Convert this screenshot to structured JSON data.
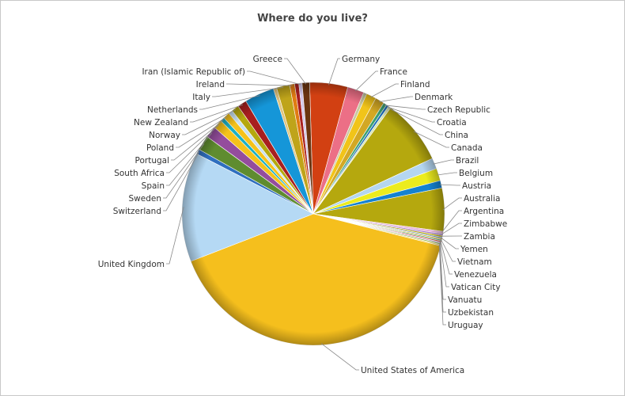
{
  "chart_data": {
    "type": "pie",
    "title": "Where do you live?",
    "slices": [
      {
        "label": "Germany",
        "value": 4.6,
        "color": "#d24012"
      },
      {
        "label": "France",
        "value": 2.0,
        "color": "#ec6f86"
      },
      {
        "label": "Finland",
        "value": 0.4,
        "color": "#c8c8a0"
      },
      {
        "label": "Finland",
        "value": 1.2,
        "color": "#f1c419"
      },
      {
        "label": "Denmark",
        "value": 1.1,
        "color": "#d3a824"
      },
      {
        "label": "Czech Republic",
        "value": 0.4,
        "color": "#3b9f6e"
      },
      {
        "label": "Croatia",
        "value": 0.3,
        "color": "#1f6fb8"
      },
      {
        "label": "China",
        "value": 0.3,
        "color": "#d8e4b0"
      },
      {
        "label": "Canada",
        "value": 7.9,
        "color": "#b5a80e"
      },
      {
        "label": "Brazil",
        "value": 1.3,
        "color": "#b4d6f0"
      },
      {
        "label": "Belgium",
        "value": 1.5,
        "color": "#ecec1e"
      },
      {
        "label": "Austria",
        "value": 0.9,
        "color": "#1582d0"
      },
      {
        "label": "Australia",
        "value": 5.2,
        "color": "#b5a80e"
      },
      {
        "label": "Argentina",
        "value": 0.3,
        "color": "#e6b4d8"
      },
      {
        "label": "Zimbabwe",
        "value": 0.2,
        "color": "#a878c8"
      },
      {
        "label": "Zambia",
        "value": 0.2,
        "color": "#b5a80e"
      },
      {
        "label": "Yemen",
        "value": 0.15,
        "color": "#5b8fc8"
      },
      {
        "label": "Vietnam",
        "value": 0.15,
        "color": "#e8b428"
      },
      {
        "label": "Venezuela",
        "value": 0.15,
        "color": "#4cae7c"
      },
      {
        "label": "Vatican City",
        "value": 0.15,
        "color": "#d45a3a"
      },
      {
        "label": "Vanuatu",
        "value": 0.15,
        "color": "#c8a0d0"
      },
      {
        "label": "Uzbekistan",
        "value": 0.15,
        "color": "#8ab850"
      },
      {
        "label": "Uruguay",
        "value": 0.15,
        "color": "#f0d060"
      },
      {
        "label": "United States of America",
        "value": 39.5,
        "color": "#f5bf1d"
      },
      {
        "label": "United Kingdom",
        "value": 13.2,
        "color": "#b5d9f4"
      },
      {
        "label": "Switzerland",
        "value": 0.6,
        "color": "#2f6fbf"
      },
      {
        "label": "Sweden",
        "value": 1.8,
        "color": "#5f8c2f"
      },
      {
        "label": "Spain",
        "value": 1.4,
        "color": "#944d9d"
      },
      {
        "label": "South Africa",
        "value": 1.1,
        "color": "#f5c21a"
      },
      {
        "label": "Portugal",
        "value": 0.5,
        "color": "#1bb0c4"
      },
      {
        "label": "Poland",
        "value": 0.8,
        "color": "#f5c21a"
      },
      {
        "label": "Poland",
        "value": 0.5,
        "color": "#c8e0f0"
      },
      {
        "label": "Norway",
        "value": 0.9,
        "color": "#b5a80e"
      },
      {
        "label": "New Zealand",
        "value": 1.1,
        "color": "#a81f1f"
      },
      {
        "label": "Netherlands",
        "value": 3.6,
        "color": "#1596d8"
      },
      {
        "label": "Netherlands",
        "value": 0.4,
        "color": "#e0c480"
      },
      {
        "label": "Italy",
        "value": 1.6,
        "color": "#bfa41a"
      },
      {
        "label": "Ireland",
        "value": 0.6,
        "color": "#e07b12"
      },
      {
        "label": "Ireland",
        "value": 0.5,
        "color": "#a81f1f"
      },
      {
        "label": "Iran (Islamic Republic of)",
        "value": 0.4,
        "color": "#d4c8ea"
      },
      {
        "label": "Greece",
        "value": 0.9,
        "color": "#6b3410"
      }
    ]
  }
}
